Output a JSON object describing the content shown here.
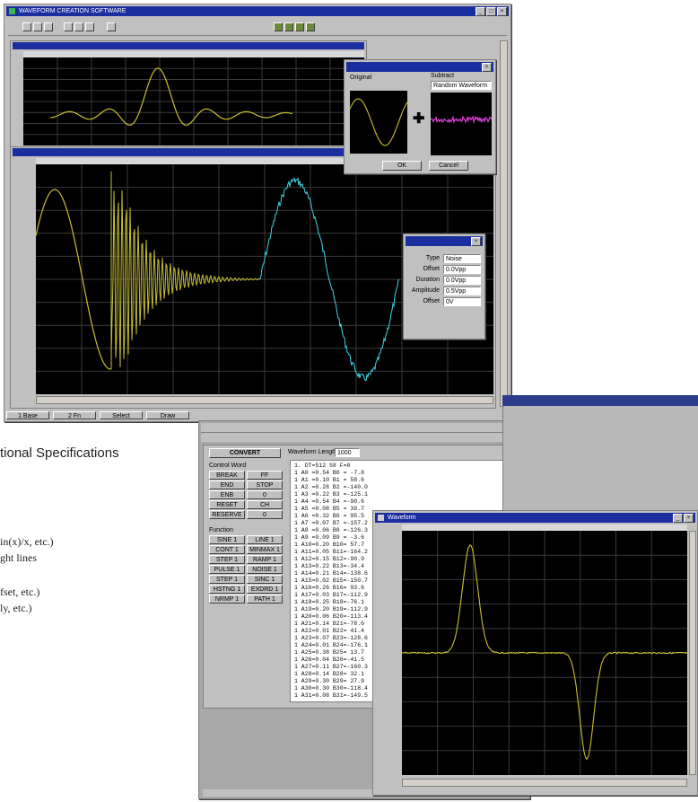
{
  "main_window": {
    "title": "WAVEFORM CREATION SOFTWARE",
    "statusbar": [
      "1 Base",
      "2 Fn",
      "Select",
      "Draw"
    ]
  },
  "combine_dialog": {
    "original_label": "Original",
    "subtract_label": "Subtract",
    "subtract_select": "Random Waveform",
    "ok_label": "OK",
    "cancel_label": "Cancel"
  },
  "properties_panel": {
    "rows": [
      {
        "label": "Type",
        "value": "Noise"
      },
      {
        "label": "Offset",
        "value": "0.0Vpp"
      },
      {
        "label": "Duration",
        "value": "0.0Vpp"
      },
      {
        "label": "Amplitude",
        "value": "0.5Vpp"
      },
      {
        "label": "Offset",
        "value": "0V"
      }
    ]
  },
  "editor_window": {
    "convert_label": "CONVERT",
    "waveform_length_label": "Waveform Length",
    "waveform_length_value": "1000",
    "control_group_label": "Control Word",
    "control_buttons": [
      "BREAK",
      "FF",
      "END",
      "STOP",
      "ENB",
      "0",
      "RESET",
      "CH",
      "RESERVE",
      "0"
    ],
    "function_label": "Function",
    "function_buttons": [
      "SINE 1",
      "LINE 1",
      "CONT 1",
      "MINMAX 1",
      "STEP 1",
      "RAMP 1",
      "PULSE 1",
      "NOISE 1",
      "STEP 1",
      "SINC 1",
      "HSTNG 1",
      "EXDRD 1",
      "NRMP 1",
      "PATH 1"
    ],
    "code_lines": [
      "1. DT=512 S8   F=0",
      "1 A0 =0.54  B0 = -7.8",
      "1 A1 =0.10  B1 = 58.6",
      "1 A2 =0.28  B2 =-140.0",
      "1 A3 =0.22  B3 =-125.1",
      "1 A4 =0.54  B4 =-90.6",
      "1 A5 =0.08  B5 = 39.7",
      "1 A6 =0.32  B6 = 95.5",
      "1 A7 =0.07  B7 =-157.2",
      "1 A8 =0.06  B8 =-126.3",
      "1 A9 =0.09  B9 = -3.6",
      "1 A10=0.20  B10= 57.7",
      "1 A11=0.05  B11=-164.2",
      "1 A12=0.15  B12=-90.9",
      "1 A13=0.22  B13=-34.4",
      "1 A14=0.21  B14=-138.6",
      "1 A15=0.02  B15=-150.7",
      "1 A16=0.26  B16= 93.6",
      "1 A17=0.03  B17=-112.9",
      "1 A18=0.25  B18=-76.1",
      "1 A19=0.20  B19=-112.9",
      "1 A20=0.06  B20=-113.4",
      "1 A21=0.14  B21=-78.6",
      "1 A22=0.01  B22= 41.4",
      "1 A23=0.07  B23=-128.6",
      "1 A24=0.01  B24=-176.1",
      "1 A25=0.38  B25= 13.7",
      "1 A26=0.04  B26=-41.5",
      "1 A27=0.11  B27=-160.3",
      "1 A28=0.14  B28= 32.1",
      "1 A29=0.30  B29= 27.9",
      "1 A30=0.30  B30=-118.4",
      "1 A31=0.08  B31=-149.5"
    ]
  },
  "pulse_window": {
    "title": "Waveform"
  },
  "specs": {
    "heading": "tional Specifications",
    "lines": [
      "in(x)/x, etc.)",
      "ght lines",
      "fset, etc.)",
      "ly, etc.)"
    ]
  },
  "colors": {
    "title_bar": "#1a2ea0",
    "window_face": "#c0c0c0",
    "scope_bg": "#000000",
    "trace_yellow": "#c8c030",
    "trace_cyan": "#3cd8e8",
    "trace_magenta": "#e040e0"
  }
}
